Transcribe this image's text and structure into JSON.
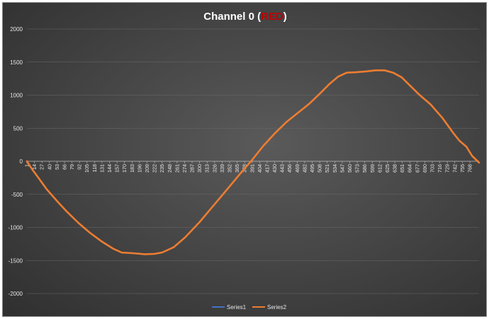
{
  "chart_data": {
    "type": "line",
    "title": {
      "prefix": "Channel 0 (",
      "accent": "RED",
      "suffix": ")",
      "accent_color": "#c00000"
    },
    "xlabel": "",
    "ylabel": "",
    "ylim": [
      -2000,
      2000
    ],
    "y_ticks": [
      2000,
      1500,
      1000,
      500,
      0,
      -500,
      -1000,
      -1500,
      -2000
    ],
    "x_ticks": [
      1,
      14,
      27,
      40,
      53,
      66,
      79,
      92,
      105,
      118,
      131,
      144,
      157,
      170,
      183,
      196,
      209,
      222,
      235,
      248,
      261,
      274,
      287,
      300,
      313,
      326,
      339,
      352,
      365,
      378,
      391,
      404,
      417,
      430,
      443,
      456,
      469,
      482,
      495,
      508,
      521,
      534,
      547,
      560,
      573,
      586,
      599,
      612,
      625,
      638,
      651,
      664,
      677,
      690,
      703,
      716,
      729,
      742,
      755,
      768
    ],
    "xlim": [
      1,
      784
    ],
    "grid": true,
    "legend_position": "bottom",
    "series": [
      {
        "name": "Series1",
        "color": "#4472c4",
        "points": [
          [
            1,
            0
          ],
          [
            10,
            -120
          ],
          [
            20,
            -240
          ],
          [
            35,
            -420
          ],
          [
            53,
            -600
          ],
          [
            70,
            -760
          ],
          [
            90,
            -930
          ],
          [
            110,
            -1080
          ],
          [
            130,
            -1210
          ],
          [
            150,
            -1320
          ],
          [
            165,
            -1380
          ],
          [
            185,
            -1390
          ],
          [
            205,
            -1405
          ],
          [
            222,
            -1400
          ],
          [
            235,
            -1380
          ],
          [
            255,
            -1300
          ],
          [
            275,
            -1150
          ],
          [
            300,
            -920
          ],
          [
            325,
            -660
          ],
          [
            350,
            -400
          ],
          [
            375,
            -140
          ],
          [
            391,
            20
          ],
          [
            410,
            230
          ],
          [
            430,
            420
          ],
          [
            450,
            590
          ],
          [
            470,
            730
          ],
          [
            490,
            870
          ],
          [
            508,
            1020
          ],
          [
            525,
            1170
          ],
          [
            540,
            1280
          ],
          [
            555,
            1340
          ],
          [
            570,
            1345
          ],
          [
            590,
            1360
          ],
          [
            605,
            1375
          ],
          [
            620,
            1375
          ],
          [
            635,
            1340
          ],
          [
            650,
            1270
          ],
          [
            665,
            1140
          ],
          [
            680,
            1010
          ],
          [
            700,
            860
          ],
          [
            720,
            660
          ],
          [
            740,
            420
          ],
          [
            750,
            310
          ],
          [
            762,
            220
          ],
          [
            772,
            80
          ],
          [
            784,
            -20
          ]
        ]
      },
      {
        "name": "Series2",
        "color": "#ed7d31",
        "points": [
          [
            1,
            0
          ],
          [
            10,
            -120
          ],
          [
            20,
            -240
          ],
          [
            35,
            -420
          ],
          [
            53,
            -600
          ],
          [
            70,
            -760
          ],
          [
            90,
            -930
          ],
          [
            110,
            -1080
          ],
          [
            130,
            -1210
          ],
          [
            150,
            -1320
          ],
          [
            165,
            -1380
          ],
          [
            185,
            -1390
          ],
          [
            205,
            -1405
          ],
          [
            222,
            -1400
          ],
          [
            235,
            -1380
          ],
          [
            255,
            -1300
          ],
          [
            275,
            -1150
          ],
          [
            300,
            -920
          ],
          [
            325,
            -660
          ],
          [
            350,
            -400
          ],
          [
            375,
            -140
          ],
          [
            391,
            20
          ],
          [
            410,
            230
          ],
          [
            430,
            420
          ],
          [
            450,
            590
          ],
          [
            470,
            730
          ],
          [
            490,
            870
          ],
          [
            508,
            1020
          ],
          [
            525,
            1170
          ],
          [
            540,
            1280
          ],
          [
            555,
            1340
          ],
          [
            570,
            1345
          ],
          [
            590,
            1360
          ],
          [
            605,
            1375
          ],
          [
            620,
            1375
          ],
          [
            635,
            1340
          ],
          [
            650,
            1270
          ],
          [
            665,
            1140
          ],
          [
            680,
            1010
          ],
          [
            700,
            860
          ],
          [
            720,
            660
          ],
          [
            740,
            420
          ],
          [
            750,
            310
          ],
          [
            762,
            220
          ],
          [
            772,
            80
          ],
          [
            784,
            -20
          ]
        ]
      }
    ]
  }
}
